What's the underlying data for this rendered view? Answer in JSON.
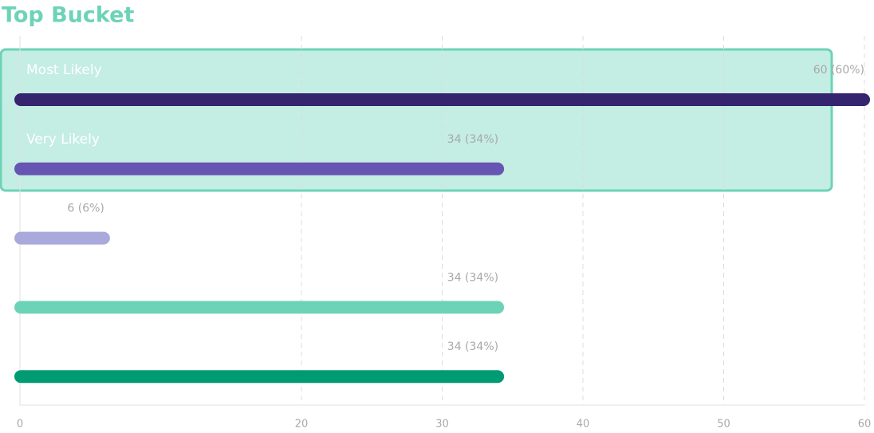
{
  "chart_data": {
    "type": "bar",
    "orientation": "horizontal",
    "title": "Top Bucket",
    "categories": [
      "Most Likely",
      "Very Likely",
      null,
      null,
      null
    ],
    "values": [
      60,
      34,
      6,
      34,
      34
    ],
    "value_labels": [
      "60 (60%)",
      "34 (34%)",
      "6 (6%)",
      "34 (34%)",
      "34 (34%)"
    ],
    "colors": [
      "#35246e",
      "#6655b3",
      "#a9a9db",
      "#6dd3b8",
      "#009b72"
    ],
    "xlim": [
      0,
      60
    ],
    "xticks": [
      0,
      20,
      30,
      40,
      50,
      60
    ],
    "grid": true,
    "highlight_color": "#6dd3b8"
  }
}
